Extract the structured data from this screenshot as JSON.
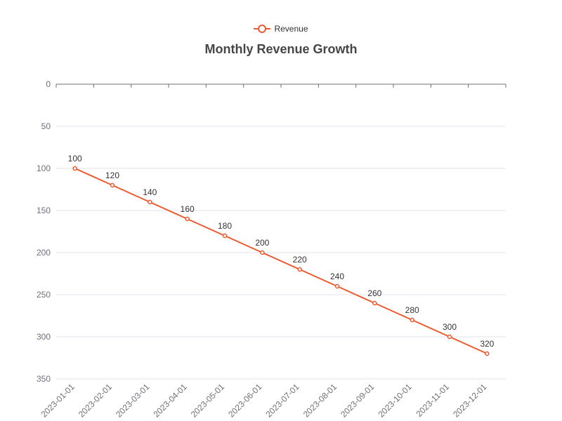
{
  "chart_data": {
    "type": "line",
    "title": "Monthly Revenue Growth",
    "xlabel": "",
    "ylabel": "",
    "y_inverted": true,
    "ylim": [
      0,
      350
    ],
    "yticks": [
      0,
      50,
      100,
      150,
      200,
      250,
      300,
      350
    ],
    "categories": [
      "2023-01-01",
      "2023-02-01",
      "2023-03-01",
      "2023-04-01",
      "2023-05-01",
      "2023-06-01",
      "2023-07-01",
      "2023-08-01",
      "2023-09-01",
      "2023-10-01",
      "2023-11-01",
      "2023-12-01"
    ],
    "series": [
      {
        "name": "Revenue",
        "color": "#ee5a2f",
        "values": [
          100,
          120,
          140,
          160,
          180,
          200,
          220,
          240,
          260,
          280,
          300,
          320
        ]
      }
    ],
    "legend_position": "top-center",
    "grid": true
  }
}
